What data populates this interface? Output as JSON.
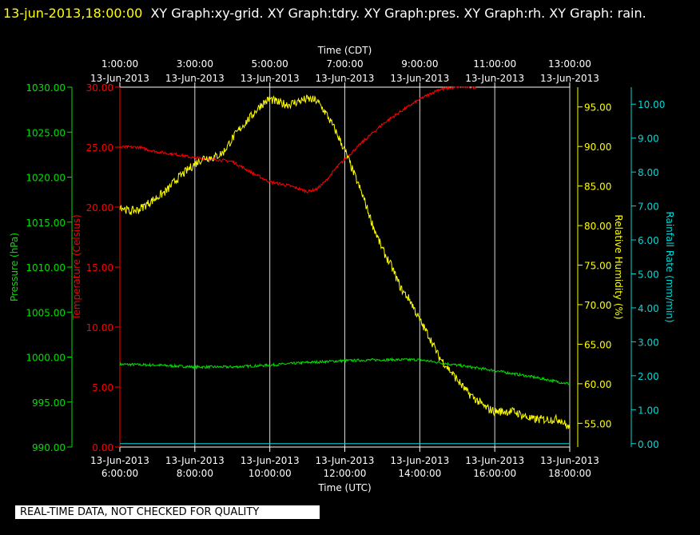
{
  "title": {
    "timestamp": "13-jun-2013,18:00:00",
    "text": "XY Graph:xy-grid.  XY Graph:tdry.  XY Graph:pres.  XY Graph:rh.  XY Graph: rain."
  },
  "disclaimer": "REAL-TIME DATA, NOT CHECKED FOR QUALITY",
  "colors": {
    "pressure": "#00e000",
    "temperature": "#ff0000",
    "humidity": "#ffff00",
    "rain": "#00d8d8",
    "grid": "#ffffff",
    "axis": "#ffffff"
  },
  "chart_data": {
    "type": "line",
    "x_top_label": "Time (CDT)",
    "x_bottom_label": "Time (UTC)",
    "x_top_ticks": [
      {
        "time": "1:00:00",
        "date": "13-Jun-2013"
      },
      {
        "time": "3:00:00",
        "date": "13-Jun-2013"
      },
      {
        "time": "5:00:00",
        "date": "13-Jun-2013"
      },
      {
        "time": "7:00:00",
        "date": "13-Jun-2013"
      },
      {
        "time": "9:00:00",
        "date": "13-Jun-2013"
      },
      {
        "time": "11:00:00",
        "date": "13-Jun-2013"
      },
      {
        "time": "13:00:00",
        "date": "13-Jun-2013"
      }
    ],
    "x_bottom_ticks": [
      {
        "date": "13-Jun-2013",
        "time": "6:00:00"
      },
      {
        "date": "13-Jun-2013",
        "time": "8:00:00"
      },
      {
        "date": "13-Jun-2013",
        "time": "10:00:00"
      },
      {
        "date": "13-Jun-2013",
        "time": "12:00:00"
      },
      {
        "date": "13-Jun-2013",
        "time": "14:00:00"
      },
      {
        "date": "13-Jun-2013",
        "time": "16:00:00"
      },
      {
        "date": "13-Jun-2013",
        "time": "18:00:00"
      }
    ],
    "xlim_utc_hours": [
      6,
      18
    ],
    "grid": true,
    "axes": {
      "pressure": {
        "label": "Pressure (hPa)",
        "ylim": [
          990,
          1030
        ],
        "ticks": [
          "1030.00",
          "1025.00",
          "1020.00",
          "1015.00",
          "1010.00",
          "1005.00",
          "1000.00",
          "995.00",
          "990.00"
        ]
      },
      "temperature": {
        "label": "Temperature (Celsius)",
        "ylim": [
          0,
          30
        ],
        "ticks": [
          "30.00",
          "25.00",
          "20.00",
          "15.00",
          "10.00",
          "5.00",
          "0.00"
        ]
      },
      "humidity": {
        "label": "Relative Humidity (%)",
        "ylim": [
          52,
          97.5
        ],
        "ticks": [
          "95.00",
          "90.00",
          "85.00",
          "80.00",
          "75.00",
          "70.00",
          "65.00",
          "60.00",
          "55.00"
        ]
      },
      "rain": {
        "label": "Rainfall Rate (mm/min)",
        "ylim": [
          -0.1,
          10.5
        ],
        "ticks": [
          "10.00",
          "9.00",
          "8.00",
          "7.00",
          "6.00",
          "5.00",
          "4.00",
          "3.00",
          "2.00",
          "1.00",
          "0.00"
        ]
      }
    },
    "series": [
      {
        "name": "pres",
        "axis": "pressure",
        "x": [
          6,
          7,
          8,
          9,
          10,
          11,
          12,
          13,
          14,
          15,
          16,
          17,
          18
        ],
        "y": [
          999.2,
          999.1,
          998.9,
          998.9,
          999.1,
          999.4,
          999.6,
          999.7,
          999.7,
          999.1,
          998.5,
          997.8,
          997.0
        ]
      },
      {
        "name": "tdry",
        "axis": "temperature",
        "x": [
          6,
          6.5,
          7,
          7.5,
          8,
          8.5,
          9,
          9.5,
          10,
          10.5,
          11,
          11.25,
          11.5,
          11.75,
          12,
          12.5,
          13,
          13.5,
          14,
          14.5,
          15,
          15.5
        ],
        "y": [
          25.0,
          25.0,
          24.6,
          24.4,
          24.1,
          24.0,
          23.8,
          22.9,
          22.1,
          21.8,
          21.3,
          21.5,
          22.2,
          23.2,
          24.0,
          25.5,
          26.9,
          28.0,
          29.0,
          29.8,
          30.0,
          30.0
        ]
      },
      {
        "name": "rh",
        "axis": "humidity",
        "x": [
          6,
          6.25,
          6.5,
          6.75,
          7,
          7.25,
          7.5,
          7.75,
          8,
          8.25,
          8.5,
          8.75,
          9,
          9.25,
          9.5,
          9.75,
          10,
          10.25,
          10.5,
          10.75,
          11,
          11.25,
          11.5,
          11.75,
          12,
          12.25,
          12.5,
          12.75,
          13,
          13.25,
          13.5,
          13.75,
          14,
          14.25,
          14.5,
          14.75,
          15,
          15.25,
          15.5,
          15.75,
          16,
          16.25,
          16.5,
          16.75,
          17,
          17.25,
          17.5,
          17.75,
          18
        ],
        "y": [
          82.5,
          81.8,
          82.0,
          82.8,
          83.6,
          84.4,
          85.8,
          86.8,
          87.8,
          88.6,
          88.6,
          89.2,
          91.0,
          92.5,
          93.8,
          95.2,
          96.0,
          95.5,
          95.3,
          95.7,
          96.0,
          95.8,
          94.2,
          92.0,
          89.5,
          86.5,
          83.5,
          80.0,
          77.0,
          74.8,
          72.0,
          70.5,
          68.0,
          66.0,
          63.5,
          62.0,
          60.5,
          59.0,
          58.0,
          57.0,
          56.5,
          56.5,
          56.5,
          56.0,
          55.5,
          55.5,
          55.5,
          55.5,
          54.3
        ]
      },
      {
        "name": "rain",
        "axis": "rain",
        "x": [
          6,
          18
        ],
        "y": [
          0,
          0
        ]
      }
    ]
  }
}
